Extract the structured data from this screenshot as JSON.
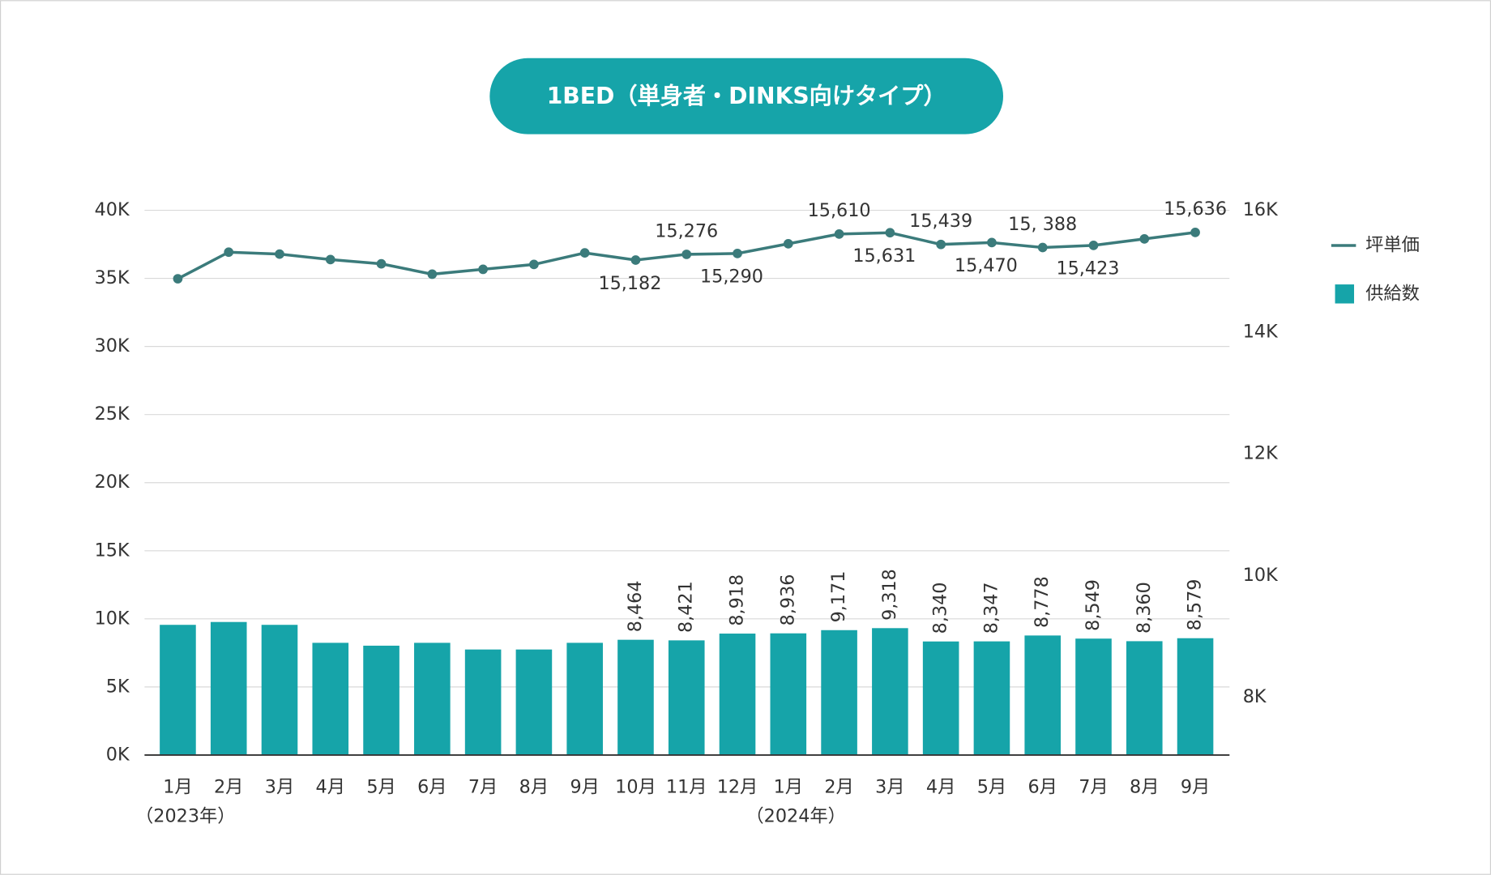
{
  "chart_data": {
    "type": "bar-line",
    "title": "1BED（単身者・DINKS向けタイプ）",
    "categories": [
      "1月",
      "2月",
      "3月",
      "4月",
      "5月",
      "6月",
      "7月",
      "8月",
      "9月",
      "10月",
      "11月",
      "12月",
      "1月",
      "2月",
      "3月",
      "4月",
      "5月",
      "6月",
      "7月",
      "8月",
      "9月"
    ],
    "annotations": [
      "（2023年）",
      "（2024年）"
    ],
    "series": [
      {
        "name": "坪単価",
        "type": "line",
        "axis": "y2",
        "color": "#3b7b7b",
        "values": [
          14875,
          15312,
          15280,
          15190,
          15120,
          14950,
          15030,
          15110,
          15300,
          15182,
          15276,
          15290,
          15450,
          15610,
          15631,
          15439,
          15470,
          15388,
          15423,
          15530,
          15636
        ],
        "value_labels": [
          null,
          null,
          null,
          null,
          null,
          null,
          null,
          null,
          null,
          "15,182",
          "15,276",
          "15,290",
          null,
          "15,610",
          "15,631",
          "15,439",
          "15,470",
          "15, 388",
          "15,423",
          null,
          "15,636"
        ]
      },
      {
        "name": "供給数",
        "type": "bar",
        "color": "#16a4a9",
        "values": [
          9560,
          9770,
          9560,
          8240,
          8030,
          8240,
          7750,
          7750,
          8240,
          8464,
          8421,
          8918,
          8936,
          9171,
          9318,
          8340,
          8347,
          8778,
          8549,
          8360,
          8579
        ],
        "value_labels": [
          null,
          null,
          null,
          null,
          null,
          null,
          null,
          null,
          null,
          "8,464",
          "8,421",
          "8,918",
          "8,936",
          "9,171",
          "9,318",
          "8,340",
          "8,347",
          "8,778",
          "8,549",
          "8,360",
          "8,579"
        ]
      }
    ],
    "ylim": [
      0,
      40000
    ],
    "yticks": [
      {
        "value": 0,
        "label": "0K"
      },
      {
        "value": 5000,
        "label": "5K"
      },
      {
        "value": 10000,
        "label": "10K"
      },
      {
        "value": 15000,
        "label": "15K"
      },
      {
        "value": 20000,
        "label": "20K"
      },
      {
        "value": 25000,
        "label": "25K"
      },
      {
        "value": 30000,
        "label": "30K"
      },
      {
        "value": 35000,
        "label": "35K"
      },
      {
        "value": 40000,
        "label": "40K"
      }
    ],
    "y2lim": [
      7050,
      16000
    ],
    "y2ticks": [
      {
        "value": 8000,
        "label": "8K"
      },
      {
        "value": 10000,
        "label": "10K"
      },
      {
        "value": 12000,
        "label": "12K"
      },
      {
        "value": 14000,
        "label": "14K"
      },
      {
        "value": 16000,
        "label": "16K"
      }
    ],
    "grid": true,
    "legend": "right"
  }
}
